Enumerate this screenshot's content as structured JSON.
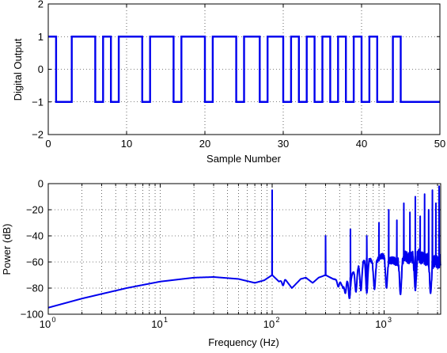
{
  "chart_data": [
    {
      "type": "line",
      "title": "",
      "xlabel": "Sample Number",
      "ylabel": "Digital Output",
      "xlim": [
        0,
        50
      ],
      "ylim": [
        -2,
        2
      ],
      "x_ticks": [
        0,
        10,
        20,
        30,
        40,
        50
      ],
      "x_tick_labels": [
        "0",
        "10",
        "20",
        "30",
        "40",
        "50"
      ],
      "y_ticks": [
        -2,
        -1,
        0,
        1,
        2
      ],
      "y_tick_labels": [
        "−2",
        "−1",
        "0",
        "1",
        "2"
      ],
      "grid": true,
      "step": true,
      "series": [
        {
          "color": "#0000ee",
          "values": [
            1,
            -1,
            -1,
            1,
            1,
            1,
            -1,
            1,
            -1,
            1,
            1,
            1,
            -1,
            1,
            1,
            1,
            -1,
            1,
            1,
            1,
            -1,
            1,
            1,
            1,
            -1,
            1,
            1,
            -1,
            1,
            1,
            -1,
            1,
            -1,
            1,
            -1,
            1,
            -1,
            1,
            -1,
            1,
            -1,
            1,
            -1,
            -1,
            1,
            -1,
            -1,
            -1,
            -1,
            -1,
            -1
          ]
        }
      ]
    },
    {
      "type": "line",
      "title": "",
      "xlabel": "Frequency (Hz)",
      "ylabel": "Power (dB)",
      "xscale": "log",
      "xlim": [
        1,
        3200
      ],
      "ylim": [
        -100,
        0
      ],
      "x_ticks": [
        1,
        10,
        100,
        1000
      ],
      "x_tick_labels": [
        "10^0",
        "10^1",
        "10^2",
        "10^3"
      ],
      "y_ticks": [
        -100,
        -80,
        -60,
        -40,
        -20,
        0
      ],
      "y_tick_labels": [
        "−100",
        "−80",
        "−60",
        "−40",
        "−20",
        "0"
      ],
      "grid": true,
      "series": [
        {
          "color": "#0000ee",
          "baseline": {
            "x": [
              1,
              2,
              5,
              10,
              20,
              30,
              50,
              70,
              85,
              100,
              115,
              130,
              150,
              180,
              200,
              230,
              260,
              300,
              350,
              400,
              430,
              450,
              480,
              500,
              550,
              600,
              700,
              800,
              1000,
              1200,
              1500,
              2000,
              2500,
              3200
            ],
            "y": [
              -95,
              -88,
              -80,
              -75,
              -72,
              -71.5,
              -73,
              -76,
              -74,
              -70,
              -75,
              -73,
              -80,
              -73,
              -72,
              -76,
              -72,
              -70,
              -73,
              -74,
              -80,
              -73,
              -72,
              -72,
              -65,
              -62,
              -57,
              -60,
              -55,
              -60,
              -57,
              -55,
              -58,
              -60
            ]
          },
          "dips": [
            {
              "x": 125,
              "y": -78
            },
            {
              "x": 390,
              "y": -79
            },
            {
              "x": 450,
              "y": -84
            },
            {
              "x": 490,
              "y": -88
            },
            {
              "x": 560,
              "y": -83
            },
            {
              "x": 620,
              "y": -82
            },
            {
              "x": 700,
              "y": -84
            },
            {
              "x": 820,
              "y": -81
            },
            {
              "x": 1050,
              "y": -80
            },
            {
              "x": 1400,
              "y": -85
            },
            {
              "x": 1900,
              "y": -82
            },
            {
              "x": 2600,
              "y": -84
            }
          ],
          "spikes": [
            {
              "x": 100,
              "y": -5
            },
            {
              "x": 300,
              "y": -40
            },
            {
              "x": 500,
              "y": -35
            },
            {
              "x": 700,
              "y": -40
            },
            {
              "x": 900,
              "y": -30
            },
            {
              "x": 1100,
              "y": -20
            },
            {
              "x": 1300,
              "y": -28
            },
            {
              "x": 1500,
              "y": -15
            },
            {
              "x": 1700,
              "y": -22
            },
            {
              "x": 1900,
              "y": -10
            },
            {
              "x": 2100,
              "y": -25
            },
            {
              "x": 2300,
              "y": -8
            },
            {
              "x": 2500,
              "y": -20
            },
            {
              "x": 2700,
              "y": -5
            },
            {
              "x": 2900,
              "y": -15
            },
            {
              "x": 3100,
              "y": -2
            }
          ]
        }
      ]
    }
  ]
}
